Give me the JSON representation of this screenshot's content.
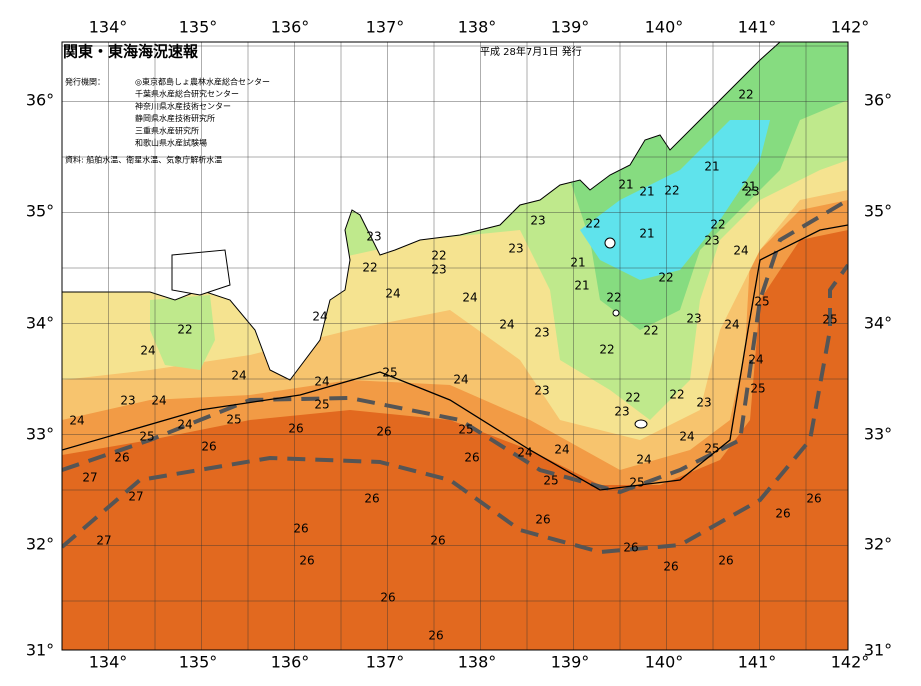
{
  "header": {
    "title": "関東・東海海況速報",
    "date": "平成 28年7月1日 発行"
  },
  "issuers": {
    "label": "発行機関：",
    "list": [
      "◎東京都島しょ農林水産総合センター",
      "千葉県水産総合研究センター",
      "神奈川県水産技術センター",
      "静岡県水産技術研究所",
      "三重県水産研究所",
      "和歌山県水産試験場"
    ]
  },
  "source": "資料: 船舶水温、衛星水温、気象庁解析水温",
  "lon_labels": [
    "134°",
    "135°",
    "136°",
    "137°",
    "138°",
    "139°",
    "140°",
    "141°",
    "142°"
  ],
  "lat_labels": [
    "36°",
    "35°",
    "34°",
    "33°",
    "32°",
    "31°"
  ],
  "isotherm_labels": [
    "22",
    "21",
    "21",
    "23",
    "22",
    "21",
    "21",
    "23",
    "22",
    "22",
    "23",
    "21",
    "23",
    "22",
    "22",
    "23",
    "23",
    "21",
    "24",
    "22",
    "21",
    "22",
    "24",
    "24",
    "25",
    "24",
    "24",
    "23",
    "22",
    "23",
    "24",
    "25",
    "22",
    "24",
    "22",
    "24",
    "24",
    "24",
    "25",
    "24",
    "23",
    "25",
    "23",
    "24",
    "25",
    "22",
    "22",
    "23",
    "23",
    "24",
    "24",
    "25",
    "25",
    "25",
    "26",
    "26",
    "24",
    "26",
    "26",
    "26",
    "24",
    "24",
    "25",
    "24",
    "27",
    "25",
    "25",
    "27",
    "26",
    "26",
    "26",
    "26",
    "27",
    "26",
    "26",
    "26",
    "26",
    "26",
    "26",
    "26",
    "26"
  ]
}
